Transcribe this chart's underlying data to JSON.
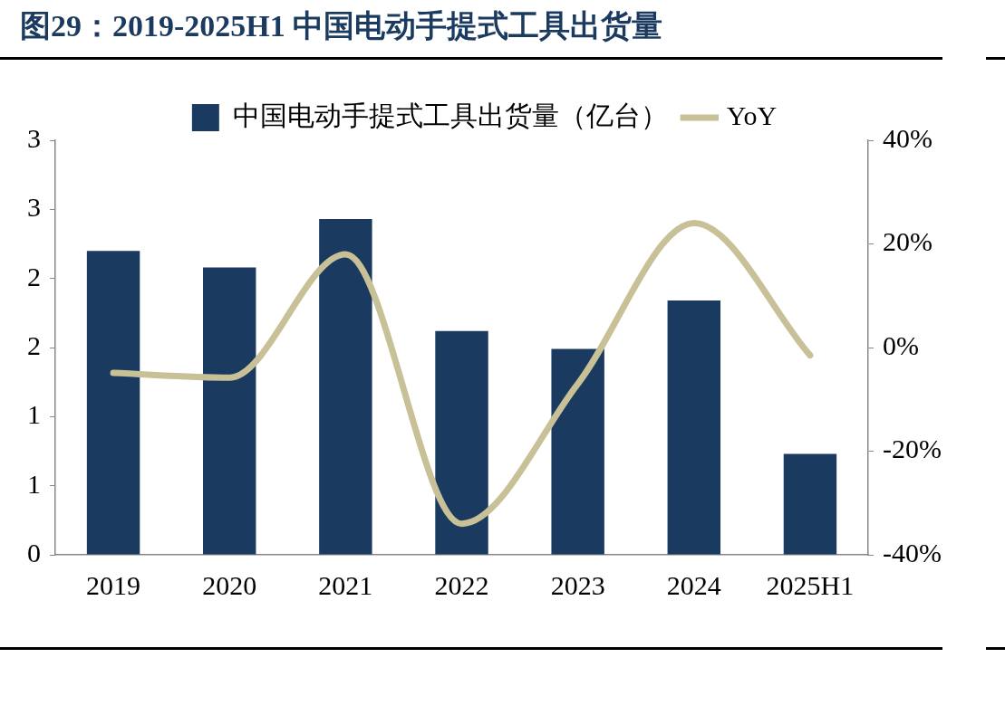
{
  "chart_data": {
    "type": "bar",
    "title": "图29：2019-2025H1 中国电动手提式工具出货量",
    "categories": [
      "2019",
      "2020",
      "2021",
      "2022",
      "2023",
      "2024",
      "2025H1"
    ],
    "series": [
      {
        "name": "中国电动手提式工具出货量（亿台）",
        "color": "#1b3a5f",
        "values": [
          2.2,
          2.08,
          2.43,
          1.62,
          1.49,
          1.84,
          0.73
        ]
      },
      {
        "name": "YoY",
        "type": "line",
        "axis": "y2",
        "color": "#c8c096",
        "values": [
          -4.9,
          -5.8,
          18,
          -34,
          -7,
          24,
          -1.5
        ]
      }
    ],
    "ylim": [
      0,
      3
    ],
    "yticks": [
      0,
      {
        "value": 0.5,
        "label": "1"
      },
      {
        "value": 1,
        "label": "1"
      },
      {
        "value": 1.5,
        "label": "2"
      },
      {
        "value": 2,
        "label": "2"
      },
      {
        "value": 2.5,
        "label": "3"
      },
      {
        "value": 3,
        "label": "3"
      }
    ],
    "y2lim": [
      -40,
      40
    ],
    "y2ticks": [
      {
        "value": -40,
        "label": "-40%"
      },
      {
        "value": -20,
        "label": "-20%"
      },
      {
        "value": 0,
        "label": "0%"
      },
      {
        "value": 20,
        "label": "20%"
      },
      {
        "value": 40,
        "label": "40%"
      }
    ],
    "grid": false,
    "legend": "top",
    "marker": "none"
  }
}
